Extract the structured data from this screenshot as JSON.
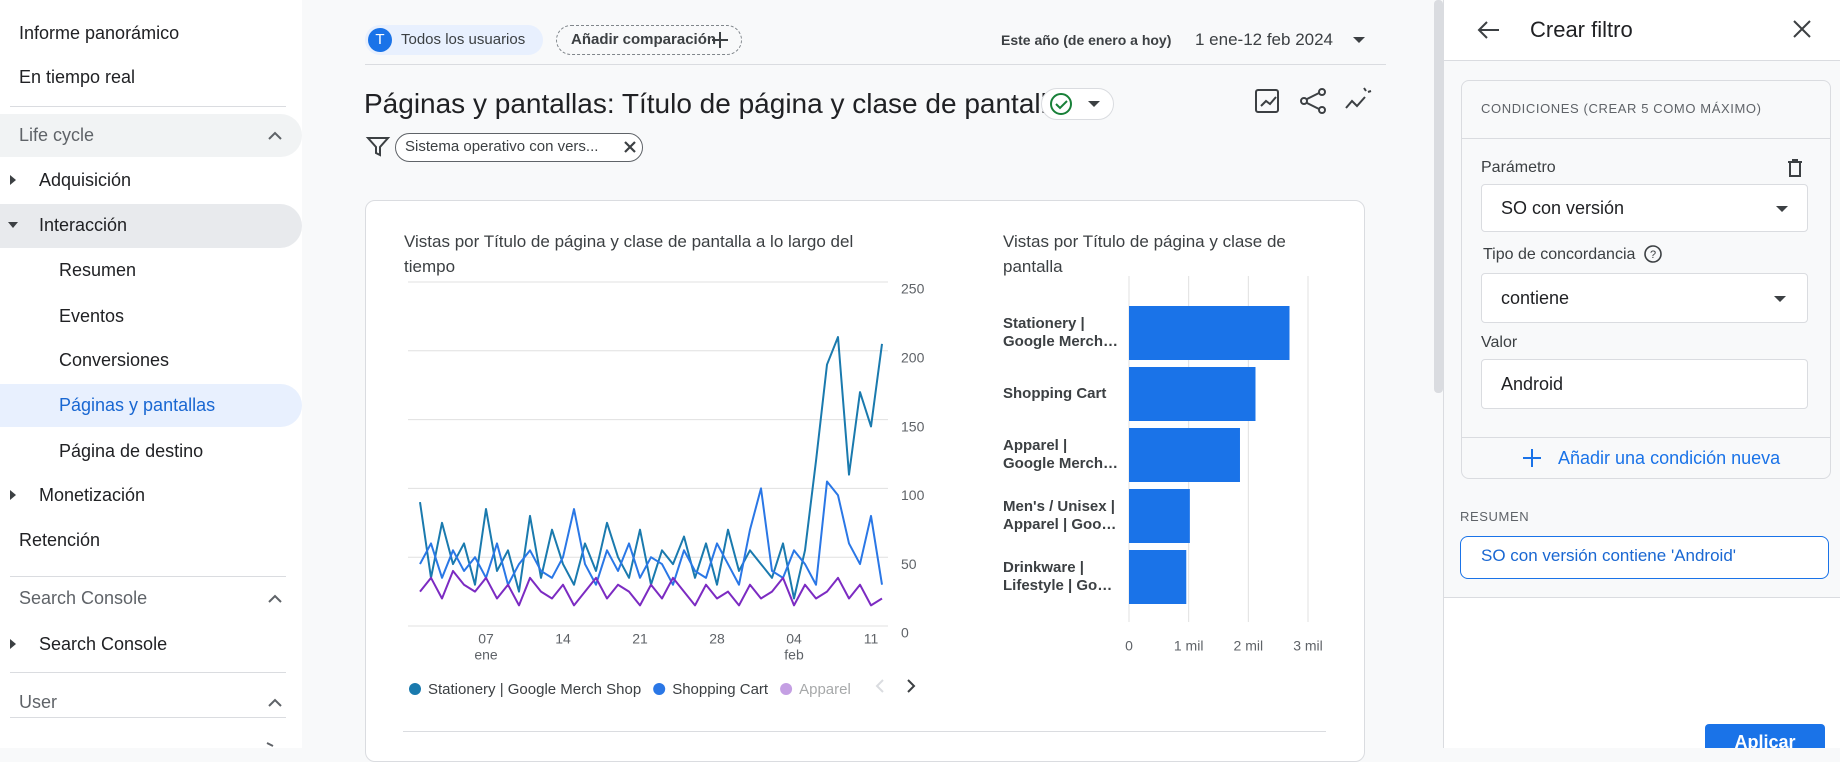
{
  "sidebar": {
    "items": [
      "Informe panorámico",
      "En tiempo real",
      "Life cycle",
      "Adquisición",
      "Interacción",
      "Resumen",
      "Eventos",
      "Conversiones",
      "Páginas y pantallas",
      "Página de destino",
      "Monetización",
      "Retención",
      "Search Console",
      "Search Console",
      "User"
    ]
  },
  "header": {
    "audience": "Todos los usuarios",
    "audience_initial": "T",
    "compare": "Añadir comparación",
    "period_name": "Este año (de enero a hoy)",
    "period": "1 ene-12 feb 2024"
  },
  "report": {
    "title": "Páginas y pantallas: Título de página y clase de pantalla",
    "filter": "Sistema operativo con vers..."
  },
  "chart_data": [
    {
      "type": "line",
      "title": "Vistas por Título de página y clase de pantalla a lo largo del tiempo",
      "categories": [
        null,
        null,
        null,
        null,
        null,
        null,
        "07",
        null,
        null,
        null,
        null,
        null,
        null,
        "14",
        null,
        null,
        null,
        null,
        null,
        null,
        "21",
        null,
        null,
        null,
        null,
        null,
        null,
        "28",
        null,
        null,
        null,
        null,
        null,
        null,
        "04",
        null,
        null,
        null,
        null,
        null,
        null,
        "11",
        null
      ],
      "x_sublabels": [
        null,
        null,
        null,
        null,
        null,
        null,
        "ene",
        null,
        null,
        null,
        null,
        null,
        null,
        null,
        null,
        null,
        null,
        null,
        null,
        null,
        null,
        null,
        null,
        null,
        null,
        null,
        null,
        null,
        null,
        null,
        null,
        null,
        null,
        null,
        "feb",
        null,
        null,
        null,
        null,
        null,
        null,
        null,
        null
      ],
      "series": [
        {
          "name": "Stationery | Google Merch Shop",
          "color": "#1a7aae",
          "values": [
            90,
            35,
            75,
            45,
            60,
            30,
            85,
            40,
            55,
            25,
            80,
            35,
            70,
            45,
            30,
            60,
            40,
            75,
            50,
            35,
            70,
            30,
            55,
            45,
            65,
            35,
            60,
            30,
            70,
            40,
            55,
            45,
            35,
            60,
            20,
            55,
            120,
            190,
            210,
            110,
            170,
            145,
            205
          ]
        },
        {
          "name": "Shopping Cart",
          "color": "#2a77e6",
          "values": [
            45,
            60,
            35,
            55,
            40,
            50,
            35,
            60,
            30,
            45,
            55,
            40,
            35,
            50,
            85,
            45,
            30,
            55,
            40,
            60,
            35,
            50,
            45,
            30,
            55,
            40,
            35,
            60,
            45,
            30,
            70,
            100,
            40,
            35,
            55,
            45,
            30,
            105,
            95,
            60,
            45,
            80,
            30
          ]
        },
        {
          "name": "Apparel",
          "color": "#7c2bc2",
          "values": [
            25,
            35,
            20,
            40,
            30,
            25,
            35,
            20,
            30,
            15,
            35,
            25,
            20,
            30,
            15,
            25,
            35,
            20,
            30,
            25,
            15,
            30,
            20,
            35,
            25,
            15,
            30,
            20,
            25,
            15,
            30,
            20,
            25,
            35,
            15,
            30,
            20,
            25,
            35,
            20,
            30,
            15,
            20
          ]
        }
      ],
      "ylim": [
        0,
        250
      ],
      "yticks": [
        0,
        50,
        100,
        150,
        200,
        250
      ],
      "grid": true
    },
    {
      "type": "bar",
      "orientation": "horizontal",
      "title": "Vistas por Título de página y clase de pantalla",
      "categories": [
        [
          "Stationery |",
          "Google Merch…"
        ],
        [
          "Shopping Cart"
        ],
        [
          "Apparel |",
          "Google Merch…"
        ],
        [
          "Men's / Unisex |",
          "Apparel | Goo…"
        ],
        [
          "Drinkware |",
          "Lifestyle | Go…"
        ]
      ],
      "values": [
        2690,
        2120,
        1860,
        1020,
        960
      ],
      "color": "#1a73e8",
      "xlim": [
        0,
        3000
      ],
      "xticks": [
        0,
        {
          "value": 1000,
          "label": "1 mil"
        },
        {
          "value": 2000,
          "label": "2 mil"
        },
        {
          "value": 3000,
          "label": "3 mil"
        }
      ],
      "grid": true
    }
  ],
  "filter_panel": {
    "title": "Crear filtro",
    "conditions_heading": "CONDICIONES (CREAR 5 COMO MÁXIMO)",
    "parameter_label": "Parámetro",
    "parameter": "SO con versión",
    "match_label": "Tipo de concordancia",
    "match": "contiene",
    "value_label": "Valor",
    "value": "Android",
    "add_condition": "Añadir una condición nueva",
    "summary_heading": "RESUMEN",
    "summary": "SO con versión contiene 'Android'",
    "apply": "Aplicar"
  }
}
